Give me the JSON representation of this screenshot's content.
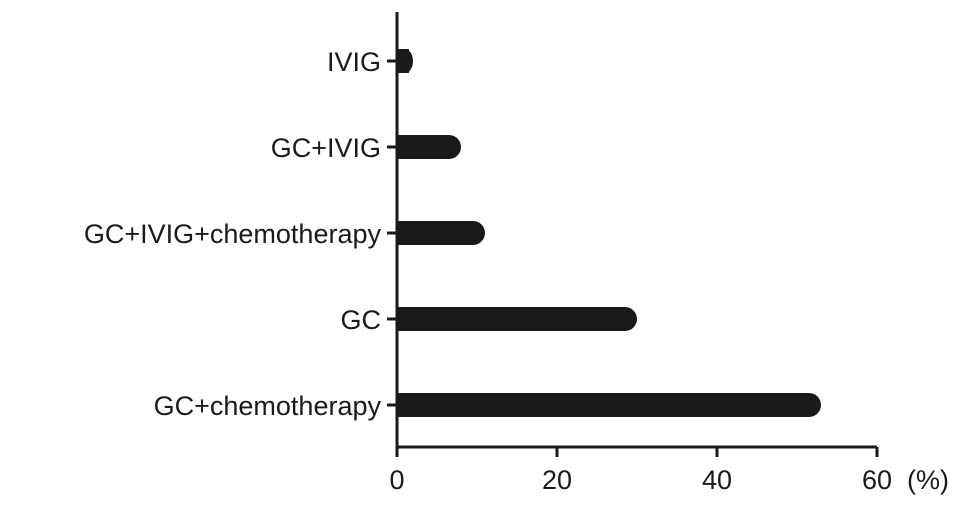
{
  "chart_data": {
    "type": "bar",
    "orientation": "horizontal",
    "categories": [
      "IVIG",
      "GC+IVIG",
      "GC+IVIG+chemotherapy",
      "GC",
      "GC+chemotherapy"
    ],
    "values": [
      2,
      8,
      11,
      30,
      53
    ],
    "title": "",
    "xlabel": "(%)",
    "ylabel": "",
    "xlim": [
      0,
      60
    ],
    "xticks": [
      0,
      20,
      40,
      60
    ],
    "xtick_labels": [
      "0",
      "20",
      "40",
      "60"
    ],
    "grid": false,
    "legend": "none",
    "bar_color": "#1a1a1a",
    "axis_color": "#1a1a1a"
  }
}
